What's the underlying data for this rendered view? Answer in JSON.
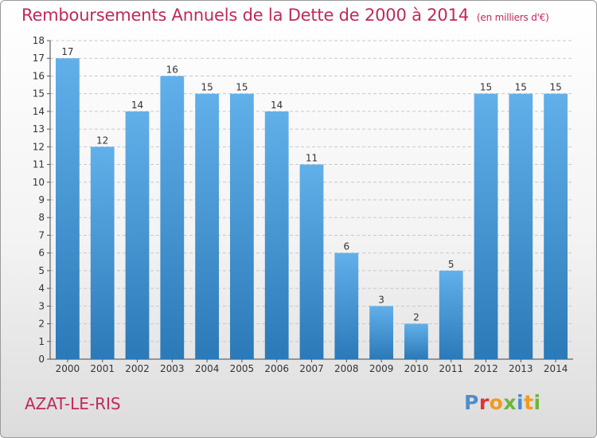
{
  "title": "Remboursements Annuels de la Dette de 2000 à 2014",
  "unit_note": "(en milliers d'€)",
  "commune": "AZAT-LE-RIS",
  "logo_text": "Proxiti",
  "colors": {
    "title": "#c2285a",
    "bar_top": "#62b0ea",
    "bar_bottom": "#2b79b7",
    "grid": "#c8c8c8",
    "logo_letters": [
      "#4a8fcc",
      "#e2342d",
      "#f29a1f",
      "#6db43c",
      "#4a8fcc",
      "#f29a1f",
      "#6db43c"
    ]
  },
  "chart_data": {
    "type": "bar",
    "title": "Remboursements Annuels de la Dette de 2000 à 2014",
    "xlabel": "",
    "ylabel": "",
    "categories": [
      "2000",
      "2001",
      "2002",
      "2003",
      "2004",
      "2005",
      "2006",
      "2007",
      "2008",
      "2009",
      "2010",
      "2011",
      "2012",
      "2013",
      "2014"
    ],
    "values": [
      17,
      12,
      14,
      16,
      15,
      15,
      14,
      11,
      6,
      3,
      2,
      5,
      15,
      15,
      15
    ],
    "ylim": [
      0,
      18
    ],
    "yticks": [
      0,
      1,
      2,
      3,
      4,
      5,
      6,
      7,
      8,
      9,
      10,
      11,
      12,
      13,
      14,
      15,
      16,
      17,
      18
    ],
    "grid": true,
    "legend": "none"
  }
}
